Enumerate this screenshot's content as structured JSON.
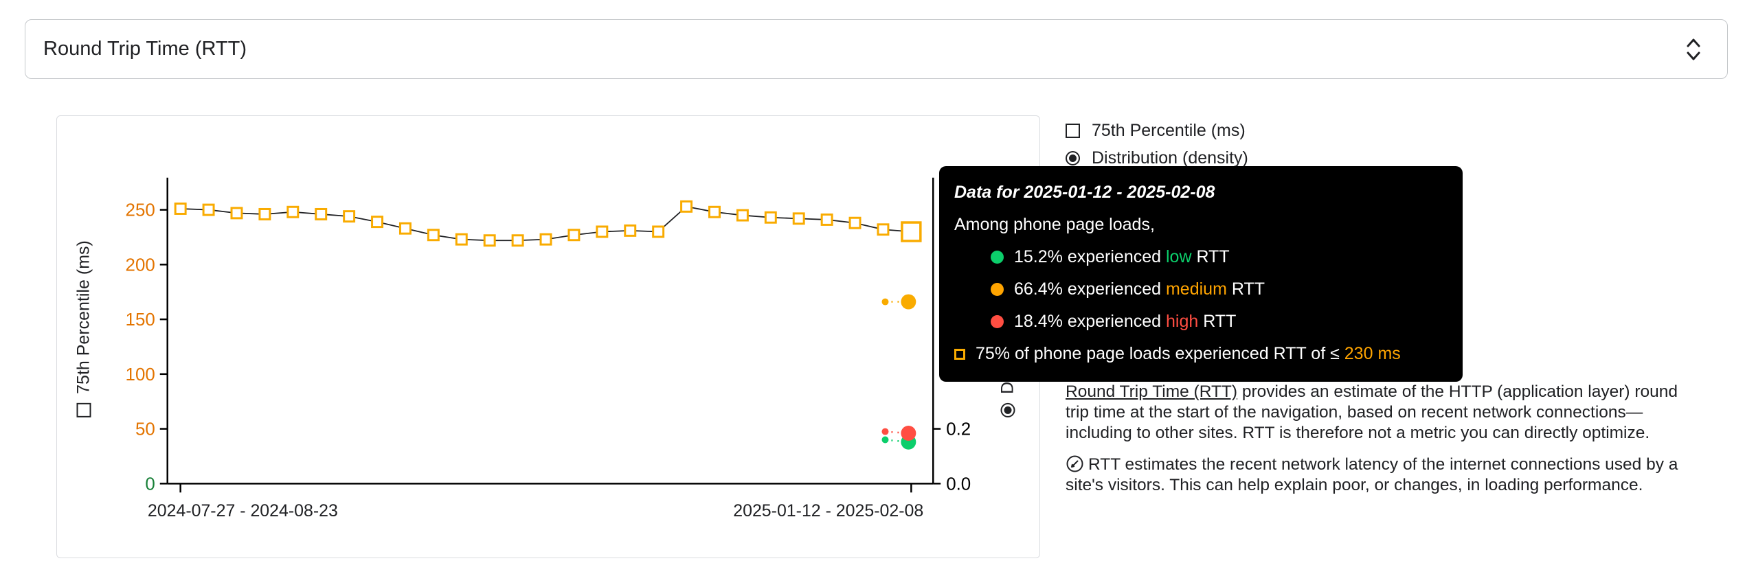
{
  "header": {
    "metric_select_value": "Round Trip Time (RTT)"
  },
  "legend": {
    "percentile": {
      "label": "75th Percentile (ms)",
      "checked": false
    },
    "distribution": {
      "label": "Distribution (density)",
      "selected": true
    }
  },
  "tooltip": {
    "title": "Data for 2025-01-12 - 2025-02-08",
    "subtitle": "Among phone page loads,",
    "rows": [
      {
        "prefix": "15.2% experienced ",
        "level": "low",
        "suffix": " RTT",
        "color": "#0cce6b"
      },
      {
        "prefix": "66.4% experienced ",
        "level": "medium",
        "suffix": " RTT",
        "color": "#ffa400"
      },
      {
        "prefix": "18.4% experienced ",
        "level": "high",
        "suffix": " RTT",
        "color": "#ff4e42"
      }
    ],
    "percentile_row": {
      "prefix": "75% of phone page loads experienced RTT of ≤ ",
      "value": "230 ms",
      "value_color": "#ffa400"
    }
  },
  "description": {
    "link_text": "Round Trip Time (RTT)",
    "para1_rest": " provides an estimate of the HTTP (application layer) round trip time at the start of the navigation, based on recent network connections—including to other sites. RTT is therefore not a metric you can directly optimize.",
    "para2": "RTT estimates the recent network latency of the internet connections used by a site's visitors. This can help explain poor, or changes, in loading performance."
  },
  "chart_data": {
    "type": "line",
    "y_left": {
      "label": "75th Percentile (ms)",
      "ticks": [
        0,
        50,
        100,
        150,
        200,
        250
      ],
      "range": [
        0,
        250
      ]
    },
    "y_right": {
      "label": "Distribution (density)",
      "ticks": [
        "0.0",
        "0.2"
      ],
      "range": [
        0,
        1.1
      ]
    },
    "x_tick_labels": [
      "2024-07-27 - 2024-08-23",
      "2025-01-12 - 2025-02-08"
    ],
    "series_75th_ms": [
      251,
      250,
      247,
      246,
      248,
      246,
      244,
      239,
      233,
      227,
      223,
      222,
      222,
      223,
      227,
      230,
      231,
      230,
      253,
      248,
      245,
      243,
      242,
      241,
      238,
      232,
      230
    ],
    "last_point_highlighted": true,
    "density_series": [
      {
        "name": "low",
        "color": "#0cce6b",
        "prev": 0.16,
        "current": 0.152
      },
      {
        "name": "medium",
        "color": "#f9ab00",
        "prev": 0.664,
        "current": 0.664
      },
      {
        "name": "high",
        "color": "#ff4e42",
        "prev": 0.19,
        "current": 0.184
      }
    ],
    "colors": {
      "marker": "#f9ab00",
      "line": "#202124",
      "axis": "#000000",
      "tick_orange": "#e37400",
      "zero_tick_green": "#188038",
      "x_label": "#202124"
    }
  }
}
